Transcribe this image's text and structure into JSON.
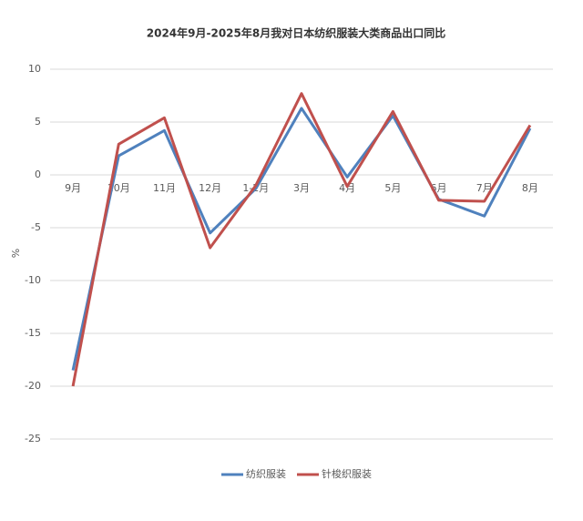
{
  "chart_data": {
    "type": "line",
    "title": "2024年9月-2025年8月我对日本纺织服装大类商品出口同比",
    "y_label": "%",
    "categories": [
      "9月",
      "10月",
      "11月",
      "12月",
      "1-2月",
      "3月",
      "4月",
      "5月",
      "6月",
      "7月",
      "8月"
    ],
    "series": [
      {
        "name": "纺织服装",
        "color": "#4f81bd",
        "values": [
          -18.5,
          1.8,
          4.2,
          -5.5,
          -1.3,
          6.3,
          -0.2,
          5.6,
          -2.3,
          -3.9,
          4.4
        ]
      },
      {
        "name": "针梭织服装",
        "color": "#c0504d",
        "values": [
          -20,
          2.9,
          5.4,
          -6.9,
          -1.0,
          7.7,
          -1.1,
          6.0,
          -2.4,
          -2.5,
          4.7
        ]
      }
    ],
    "ylim": [
      -25,
      10
    ],
    "yticks": [
      -25,
      -20,
      -15,
      -10,
      -5,
      0,
      5,
      10
    ],
    "grid": true,
    "legend": "bottom"
  }
}
